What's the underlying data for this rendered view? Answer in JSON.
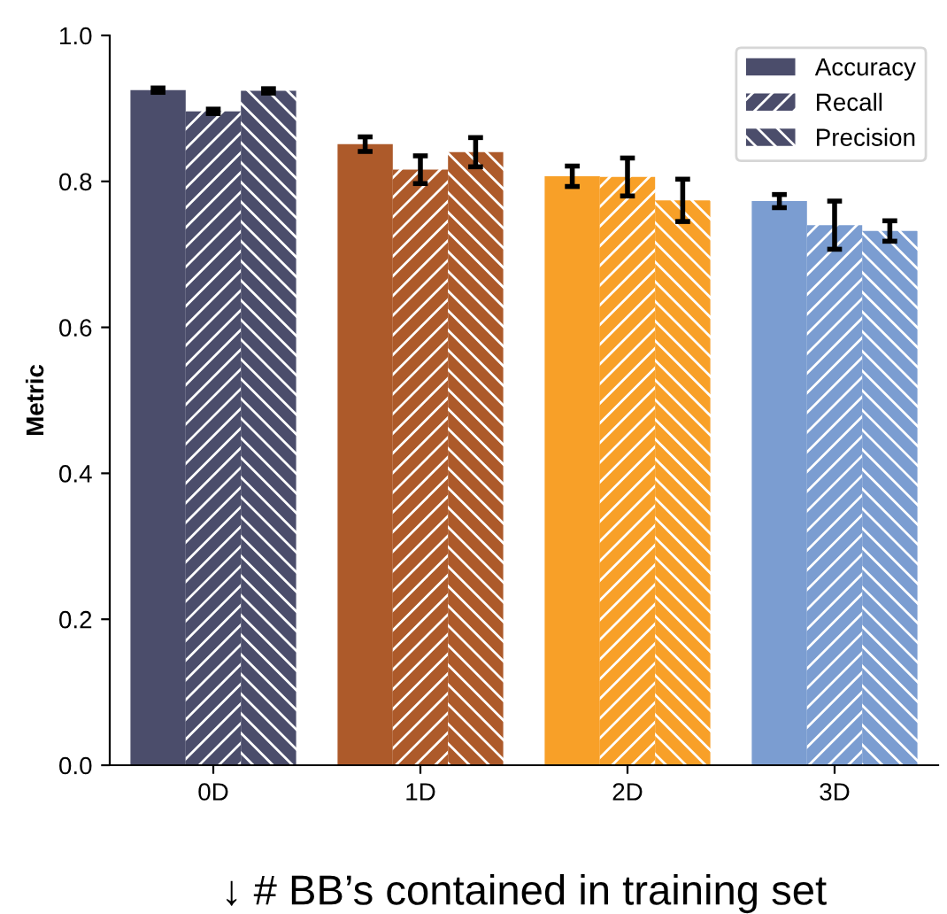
{
  "chart_data": {
    "type": "bar",
    "ylabel": "Metric",
    "xlabel": "↓ # BB’s contained in training set",
    "categories": [
      "0D",
      "1D",
      "2D",
      "3D"
    ],
    "series": [
      {
        "name": "Accuracy",
        "color": "#4b4d6b",
        "colors": [
          "#4b4d6b",
          "#ad5a2a",
          "#f8a028",
          "#7b9dd1"
        ],
        "values": [
          0.925,
          0.851,
          0.807,
          0.773
        ],
        "errors": [
          0.003,
          0.01,
          0.014,
          0.009
        ]
      },
      {
        "name": "Recall",
        "color": "#4b4d6b",
        "colors": [
          "#4b4d6b",
          "#ad5a2a",
          "#f8a028",
          "#7b9dd1"
        ],
        "values": [
          0.896,
          0.816,
          0.806,
          0.74
        ],
        "errors": [
          0.003,
          0.019,
          0.026,
          0.033
        ]
      },
      {
        "name": "Precision",
        "color": "#4b4d6b",
        "colors": [
          "#4b4d6b",
          "#ad5a2a",
          "#f8a028",
          "#7b9dd1"
        ],
        "values": [
          0.924,
          0.84,
          0.774,
          0.732
        ],
        "errors": [
          0.003,
          0.02,
          0.029,
          0.014
        ]
      }
    ],
    "ylim": [
      0,
      1.0
    ],
    "yticks": [
      {
        "value": 0,
        "label": "0.0"
      },
      0.2,
      0.4,
      0.6,
      0.8,
      {
        "value": 1,
        "label": "1.0"
      }
    ],
    "grid": false,
    "legend": "top right"
  }
}
